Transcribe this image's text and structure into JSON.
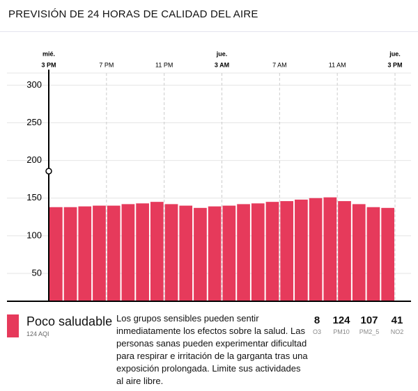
{
  "header": {
    "title": "PREVISIÓN DE 24 HORAS DE CALIDAD DEL AIRE"
  },
  "chart_data": {
    "type": "bar",
    "values": [
      138,
      138,
      139,
      140,
      140,
      142,
      143,
      145,
      142,
      140,
      137,
      139,
      140,
      142,
      143,
      145,
      146,
      148,
      150,
      151,
      146,
      142,
      138,
      137
    ],
    "color": "#e63a5b",
    "ylim": [
      14,
      316
    ],
    "yticks": [
      50,
      100,
      150,
      200,
      250,
      300
    ],
    "xticks": [
      {
        "day": "mié.",
        "time": "3 PM"
      },
      {
        "time": "7 PM"
      },
      {
        "time": "11 PM"
      },
      {
        "day": "jue.",
        "time": "3 AM"
      },
      {
        "time": "7 AM"
      },
      {
        "time": "11 AM"
      },
      {
        "day": "jue.",
        "time": "3 PM"
      }
    ],
    "grid": true
  },
  "summary": {
    "category": "Poco saludable",
    "aqi": "124 AQI",
    "color": "#e63a5b",
    "description": "Los grupos sensibles pueden sentir inmediatamente los efectos sobre la salud. Las personas sanas pueden experimentar dificultad para respirar e irritación de la garganta tras una exposición prolongada. Limite sus actividades al aire libre."
  },
  "pollutants": [
    {
      "value": 8,
      "name": "O3"
    },
    {
      "value": 124,
      "name": "PM10"
    },
    {
      "value": 107,
      "name": "PM2_5"
    },
    {
      "value": 41,
      "name": "NO2"
    }
  ]
}
